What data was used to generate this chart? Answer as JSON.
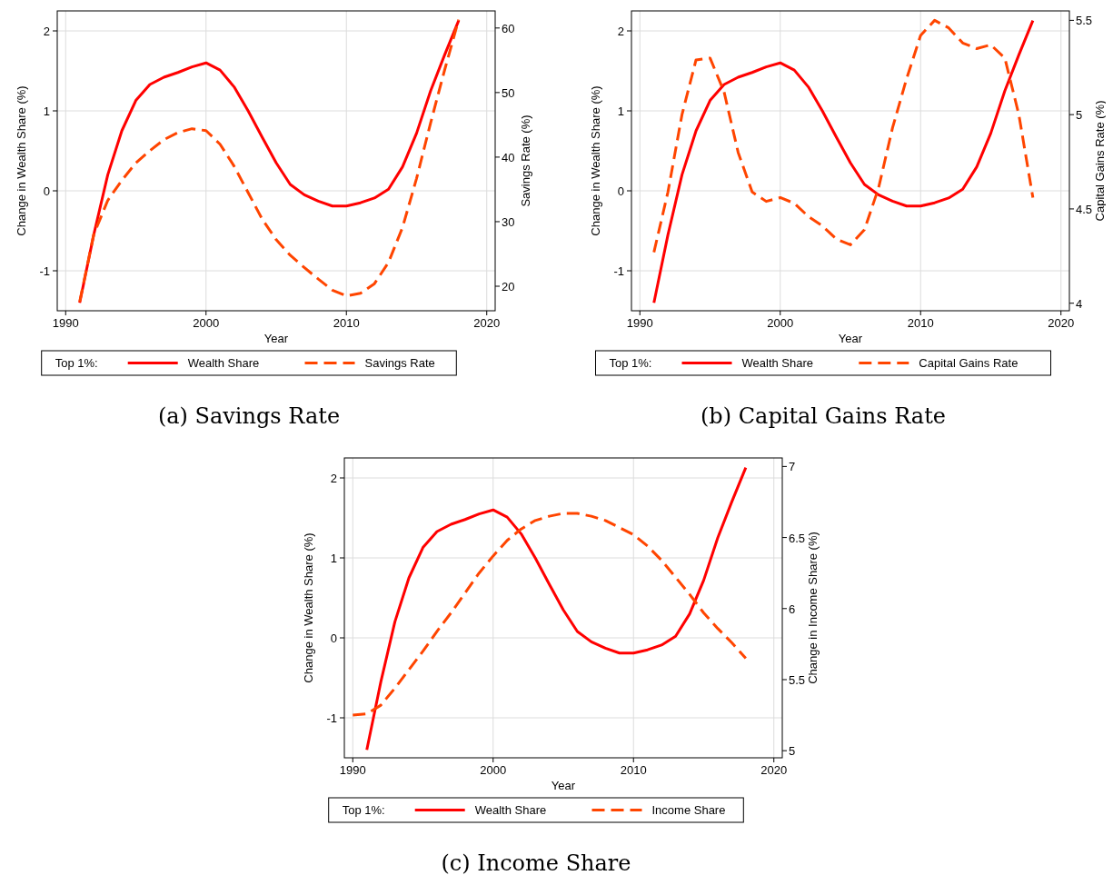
{
  "chart_data": [
    {
      "type": "line",
      "title": "(a) Savings Rate",
      "xlabel": "Year",
      "ylabel": "Change in Wealth Share (%)",
      "y2label": "Savings Rate (%)",
      "legend_title": "Top 1%:",
      "legend": "bottom",
      "grid": true,
      "xlim": [
        1989.4,
        2020.6
      ],
      "xticks": [
        1990,
        2000,
        2010,
        2020
      ],
      "ylim": [
        -1.5,
        2.25
      ],
      "yticks": [
        -1,
        0,
        1,
        2
      ],
      "y2lim": [
        16.2,
        62.65
      ],
      "y2ticks": [
        20,
        30,
        40,
        50,
        60
      ],
      "x": [
        1991,
        1992,
        1993,
        1994,
        1995,
        1996,
        1997,
        1998,
        1999,
        2000,
        2001,
        2002,
        2003,
        2004,
        2005,
        2006,
        2007,
        2008,
        2009,
        2010,
        2011,
        2012,
        2013,
        2014,
        2015,
        2016,
        2017,
        2018
      ],
      "series": [
        {
          "name": "Wealth Share",
          "color": "#ff0000",
          "line_style": "solid",
          "values": [
            -1.4,
            -0.55,
            0.2,
            0.75,
            1.13,
            1.33,
            1.42,
            1.48,
            1.55,
            1.6,
            1.51,
            1.3,
            1.0,
            0.67,
            0.35,
            0.08,
            -0.05,
            -0.13,
            -0.19,
            -0.19,
            -0.15,
            -0.09,
            0.02,
            0.3,
            0.72,
            1.25,
            1.7,
            2.13
          ]
        },
        {
          "name": "Savings Rate",
          "color": "#ff4500",
          "line_style": "dashed",
          "axis": "y2",
          "values": [
            17.6,
            28,
            33.3,
            36.4,
            39.1,
            41,
            42.7,
            43.8,
            44.4,
            44.1,
            42,
            38.6,
            34.5,
            30.4,
            27.2,
            24.8,
            22.9,
            21.1,
            19.4,
            18.5,
            18.9,
            20.4,
            23.7,
            29.1,
            36.7,
            45.3,
            53.5,
            61.3
          ]
        }
      ]
    },
    {
      "type": "line",
      "title": "(b) Capital Gains Rate",
      "xlabel": "Year",
      "ylabel": "Change in Wealth Share (%)",
      "y2label": "Capital Gains Rate (%)",
      "legend_title": "Top 1%:",
      "legend": "bottom",
      "grid": true,
      "xlim": [
        1989.4,
        2020.6
      ],
      "xticks": [
        1990,
        2000,
        2010,
        2020
      ],
      "ylim": [
        -1.5,
        2.25
      ],
      "yticks": [
        -1,
        0,
        1,
        2
      ],
      "y2lim": [
        3.96,
        5.55
      ],
      "y2ticks": [
        4,
        4.5,
        5,
        5.5
      ],
      "x": [
        1991,
        1992,
        1993,
        1994,
        1995,
        1996,
        1997,
        1998,
        1999,
        2000,
        2001,
        2002,
        2003,
        2004,
        2005,
        2006,
        2007,
        2008,
        2009,
        2010,
        2011,
        2012,
        2013,
        2014,
        2015,
        2016,
        2017,
        2018
      ],
      "series": [
        {
          "name": "Wealth Share",
          "color": "#ff0000",
          "line_style": "solid",
          "values": [
            -1.4,
            -0.55,
            0.2,
            0.75,
            1.13,
            1.33,
            1.42,
            1.48,
            1.55,
            1.6,
            1.51,
            1.3,
            1.0,
            0.67,
            0.35,
            0.08,
            -0.05,
            -0.13,
            -0.19,
            -0.19,
            -0.15,
            -0.09,
            0.02,
            0.3,
            0.72,
            1.25,
            1.7,
            2.13
          ]
        },
        {
          "name": "Capital Gains Rate",
          "color": "#ff4500",
          "line_style": "dashed",
          "axis": "y2",
          "values": [
            4.27,
            4.59,
            5.0,
            5.29,
            5.3,
            5.12,
            4.8,
            4.59,
            4.54,
            4.56,
            4.53,
            4.46,
            4.41,
            4.34,
            4.31,
            4.39,
            4.61,
            4.93,
            5.19,
            5.42,
            5.5,
            5.46,
            5.38,
            5.35,
            5.37,
            5.3,
            5.0,
            4.56
          ]
        }
      ]
    },
    {
      "type": "line",
      "title": "(c) Income Share",
      "xlabel": "Year",
      "ylabel": "Change in Wealth Share (%)",
      "y2label": "Change in Income Share (%)",
      "legend_title": "Top 1%:",
      "legend": "bottom",
      "grid": true,
      "xlim": [
        1989.4,
        2020.6
      ],
      "xticks": [
        1990,
        2000,
        2010,
        2020
      ],
      "ylim": [
        -1.5,
        2.25
      ],
      "yticks": [
        -1,
        0,
        1,
        2
      ],
      "y2lim": [
        4.95,
        7.06
      ],
      "y2ticks": [
        5,
        5.5,
        6,
        6.5,
        7
      ],
      "series": [
        {
          "name": "Wealth Share",
          "color": "#ff0000",
          "line_style": "solid",
          "x": [
            1991,
            1992,
            1993,
            1994,
            1995,
            1996,
            1997,
            1998,
            1999,
            2000,
            2001,
            2002,
            2003,
            2004,
            2005,
            2006,
            2007,
            2008,
            2009,
            2010,
            2011,
            2012,
            2013,
            2014,
            2015,
            2016,
            2017,
            2018
          ],
          "values": [
            -1.4,
            -0.55,
            0.2,
            0.75,
            1.13,
            1.33,
            1.42,
            1.48,
            1.55,
            1.6,
            1.51,
            1.3,
            1.0,
            0.67,
            0.35,
            0.08,
            -0.05,
            -0.13,
            -0.19,
            -0.19,
            -0.15,
            -0.09,
            0.02,
            0.3,
            0.72,
            1.25,
            1.7,
            2.13
          ]
        },
        {
          "name": "Income Share",
          "color": "#ff4500",
          "line_style": "dashed",
          "axis": "y2",
          "x": [
            1990,
            1991,
            1992,
            1993,
            1994,
            1995,
            1996,
            1997,
            1998,
            1999,
            2000,
            2001,
            2002,
            2003,
            2004,
            2005,
            2006,
            2007,
            2008,
            2009,
            2010,
            2011,
            2012,
            2013,
            2014,
            2015,
            2016,
            2017,
            2018
          ],
          "values": [
            5.25,
            5.26,
            5.32,
            5.44,
            5.57,
            5.7,
            5.84,
            5.97,
            6.11,
            6.25,
            6.37,
            6.48,
            6.56,
            6.62,
            6.65,
            6.67,
            6.67,
            6.65,
            6.62,
            6.57,
            6.52,
            6.44,
            6.34,
            6.22,
            6.1,
            5.97,
            5.86,
            5.76,
            5.65
          ]
        }
      ]
    }
  ]
}
